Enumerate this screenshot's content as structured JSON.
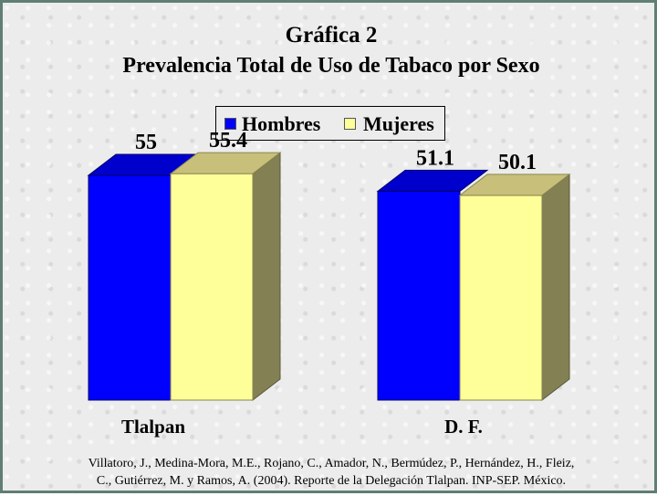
{
  "colors": {
    "hombres_front": "#0000ff",
    "hombres_top": "#0000cc",
    "mujeres_front": "#ffff99",
    "mujeres_top": "#c8c07a",
    "mujeres_side": "#838054"
  },
  "chart_data": {
    "type": "bar",
    "title": "Gráfica 2",
    "subtitle": "Prevalencia Total de Uso de Tabaco por Sexo",
    "categories": [
      "Tlalpan",
      "D. F."
    ],
    "series": [
      {
        "name": "Hombres",
        "values": [
          55,
          51.1
        ]
      },
      {
        "name": "Mujeres",
        "values": [
          55.4,
          50.1
        ]
      }
    ],
    "value_labels": [
      [
        "55",
        "51.1"
      ],
      [
        "55.4",
        "50.1"
      ]
    ],
    "legend": "top-center",
    "grid": false,
    "ylim": [
      0,
      57
    ]
  },
  "source": {
    "line1": "Villatoro, J., Medina-Mora, M.E., Rojano, C., Amador, N., Bermúdez, P., Hernández, H., Fleiz,",
    "line2": "C., Gutiérrez, M. y Ramos, A. (2004). Reporte de la Delegación Tlalpan. INP-SEP. México."
  }
}
